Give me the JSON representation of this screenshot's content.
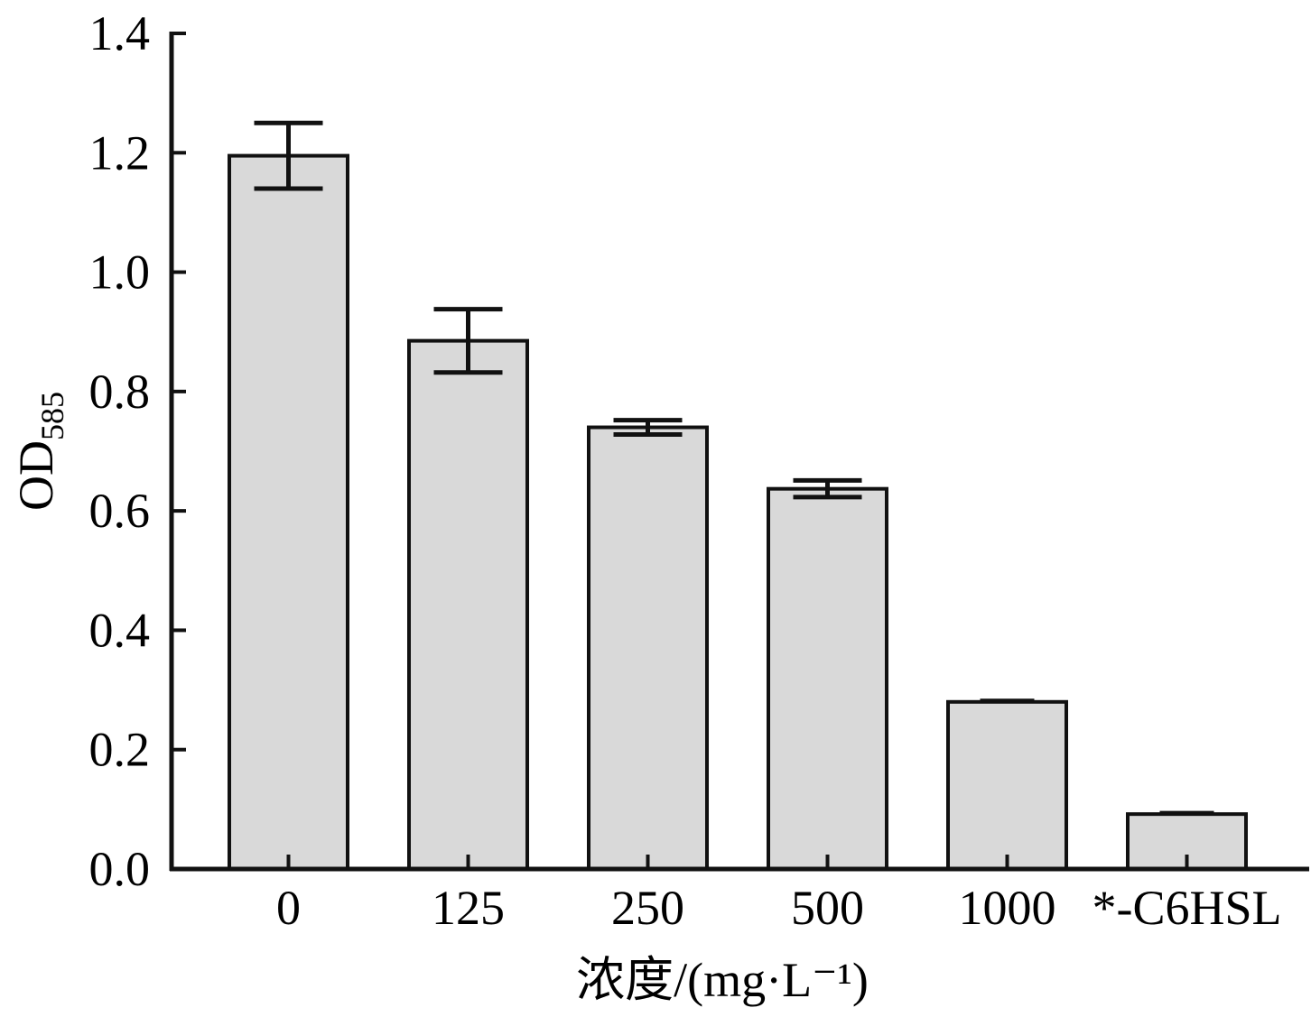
{
  "chart_data": {
    "type": "bar",
    "title": "",
    "xlabel": "浓度/(mg·L⁻¹)",
    "ylabel": "OD585",
    "ylabel_parts": {
      "main": "OD",
      "sub": "585"
    },
    "categories": [
      "0",
      "125",
      "250",
      "500",
      "1000",
      "*-C6HSL"
    ],
    "values": [
      1.195,
      0.885,
      0.74,
      0.637,
      0.28,
      0.092
    ],
    "errors": [
      0.055,
      0.053,
      0.012,
      0.014,
      0.002,
      0.002
    ],
    "ylim": [
      0,
      1.4
    ],
    "yticks": [
      "0.0",
      "0.2",
      "0.4",
      "0.6",
      "0.8",
      "1.0",
      "1.2",
      "1.4"
    ],
    "grid": false,
    "colors": {
      "bar_fill": "#d9d9d9",
      "bar_edge": "#111111",
      "axis": "#111111"
    }
  }
}
